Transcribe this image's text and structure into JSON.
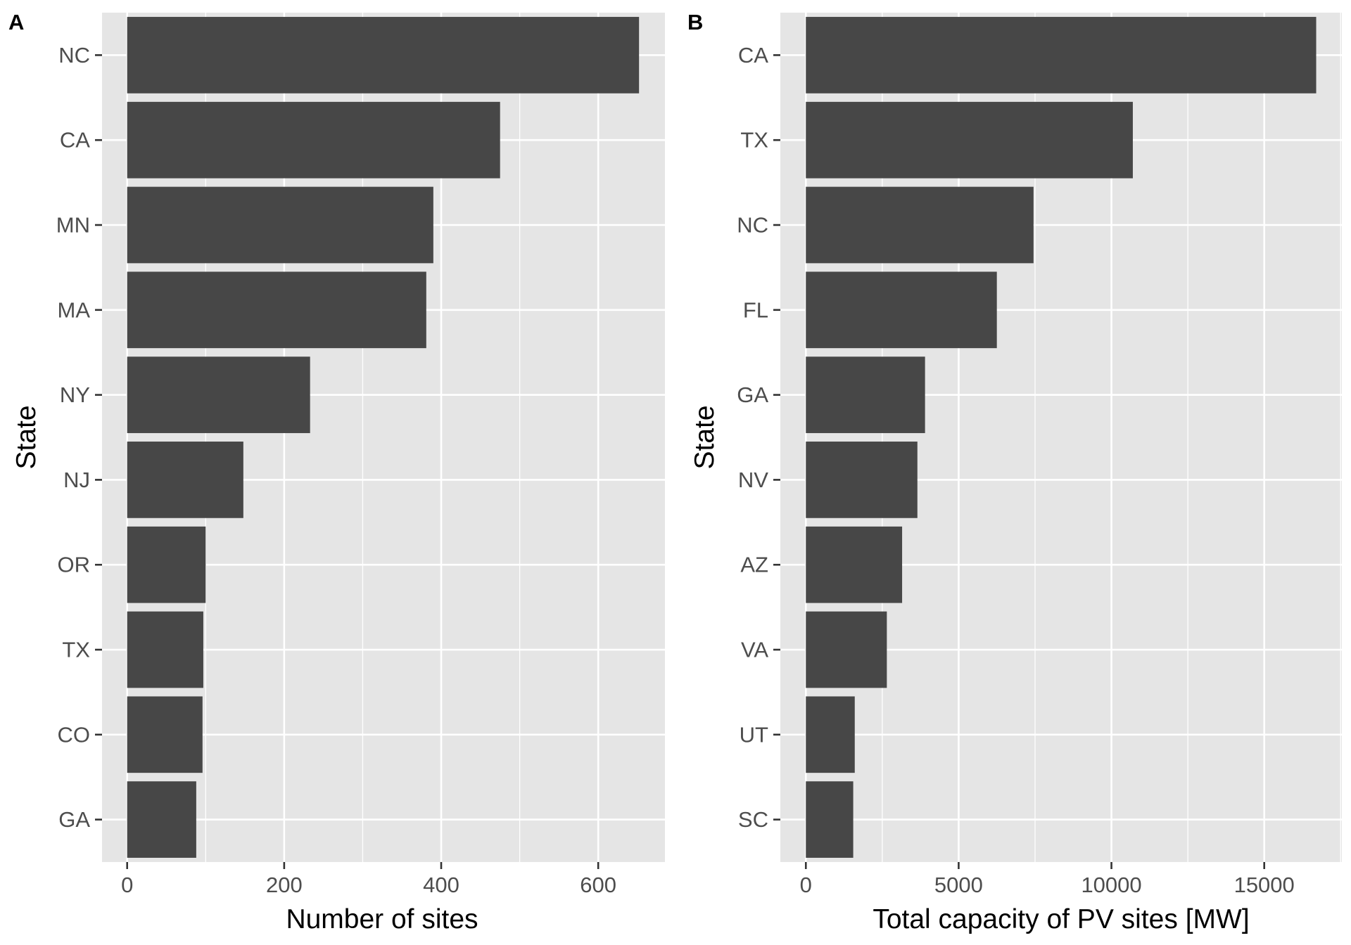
{
  "chart_data": [
    {
      "type": "bar",
      "orientation": "horizontal",
      "panel_label": "A",
      "categories": [
        "NC",
        "CA",
        "MN",
        "MA",
        "NY",
        "NJ",
        "OR",
        "TX",
        "CO",
        "GA"
      ],
      "values": [
        652,
        475,
        390,
        381,
        233,
        148,
        100,
        97,
        96,
        88
      ],
      "xlabel": "Number of sites",
      "ylabel": "State",
      "xlim": [
        -32,
        685
      ],
      "xticks": [
        0,
        200,
        400,
        600
      ],
      "xtick_labels": [
        "0",
        "200",
        "400",
        "600"
      ],
      "grid": true,
      "bar_color": "#474747",
      "background_color": "#e5e5e5"
    },
    {
      "type": "bar",
      "orientation": "horizontal",
      "panel_label": "B",
      "categories": [
        "CA",
        "TX",
        "NC",
        "FL",
        "GA",
        "NV",
        "AZ",
        "VA",
        "UT",
        "SC"
      ],
      "values": [
        16700,
        10700,
        7450,
        6250,
        3900,
        3650,
        3150,
        2650,
        1600,
        1550
      ],
      "xlabel": "Total capacity of PV sites [MW]",
      "ylabel": "State",
      "xlim": [
        -835,
        17540
      ],
      "xticks": [
        0,
        5000,
        10000,
        15000
      ],
      "xtick_labels": [
        "0",
        "5000",
        "10000",
        "15000"
      ],
      "grid": true,
      "bar_color": "#474747",
      "background_color": "#e5e5e5"
    }
  ]
}
